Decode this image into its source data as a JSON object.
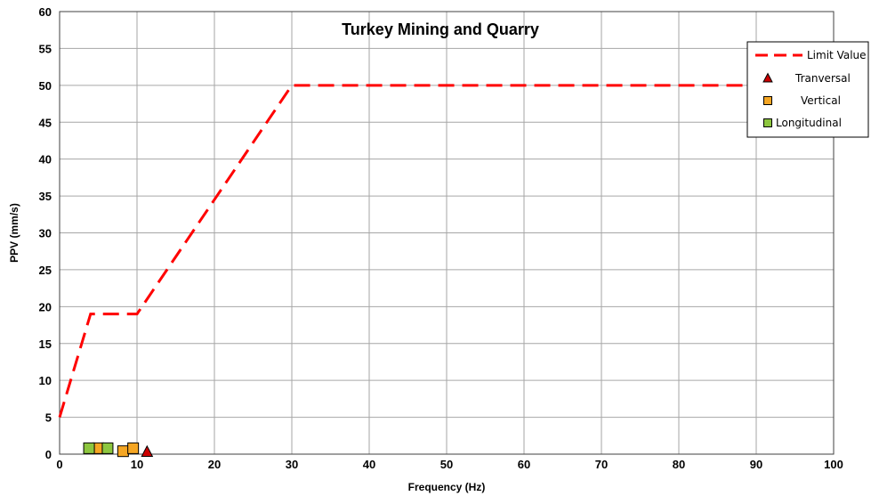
{
  "chart_data": {
    "type": "scatter",
    "title": "Turkey Mining and Quarry",
    "xlabel": "Frequency (Hz)",
    "ylabel": "PPV (mm/s)",
    "xlim": [
      0,
      100
    ],
    "ylim": [
      0,
      60
    ],
    "x_ticks": [
      0,
      10,
      20,
      30,
      40,
      50,
      60,
      70,
      80,
      90,
      100
    ],
    "y_ticks": [
      0,
      5,
      10,
      15,
      20,
      25,
      30,
      35,
      40,
      45,
      50,
      55,
      60
    ],
    "grid": true,
    "legend_position": "top-right",
    "series": [
      {
        "name": "Limit Value",
        "kind": "line",
        "style": "dashed",
        "color": "#ff0000",
        "points": [
          [
            0,
            5
          ],
          [
            4,
            19
          ],
          [
            10,
            19
          ],
          [
            30,
            50
          ],
          [
            100,
            50
          ]
        ]
      },
      {
        "name": "Tranversal",
        "kind": "marker",
        "marker": "triangle",
        "color": "#cc0000",
        "points": [
          [
            11.3,
            0.3
          ]
        ]
      },
      {
        "name": "Vertical",
        "kind": "marker",
        "marker": "square",
        "color": "#f5a623",
        "points": [
          [
            5,
            0.8
          ],
          [
            8.2,
            0.4
          ],
          [
            9.5,
            0.8
          ]
        ]
      },
      {
        "name": "Longitudinal",
        "kind": "marker",
        "marker": "square",
        "color": "#8dc63f",
        "points": [
          [
            3.8,
            0.8
          ],
          [
            6.2,
            0.8
          ]
        ]
      }
    ]
  }
}
